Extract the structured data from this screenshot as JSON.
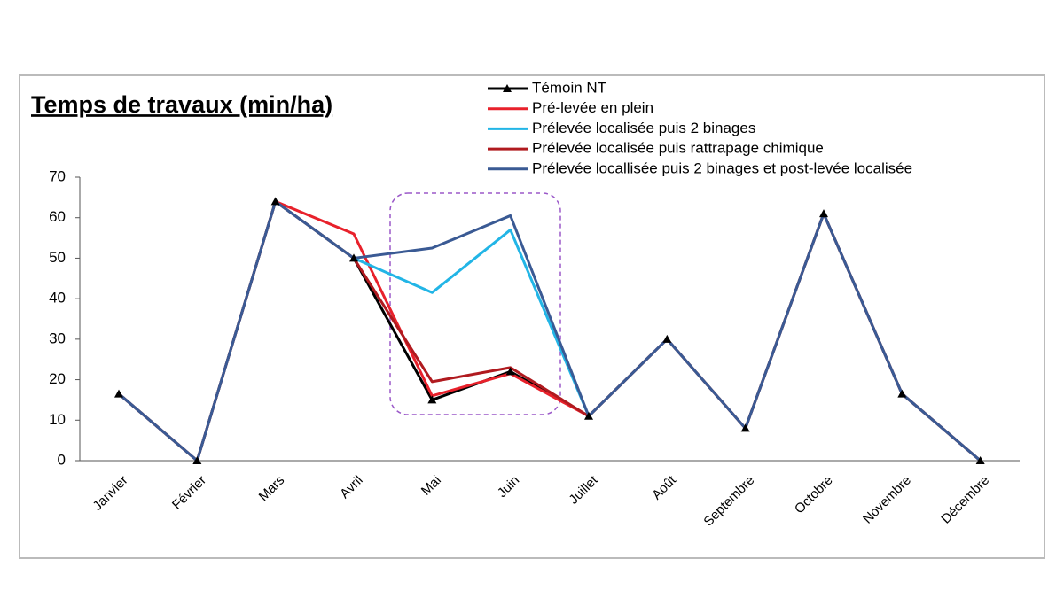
{
  "chart_data": {
    "type": "line",
    "title": "Temps de travaux (min/ha)",
    "categories": [
      "Janvier",
      "Février",
      "Mars",
      "Avril",
      "Mai",
      "Juin",
      "Juillet",
      "Août",
      "Septembre",
      "Octobre",
      "Novembre",
      "Décembre"
    ],
    "series": [
      {
        "name": "Témoin NT",
        "color": "#000000",
        "marker": "triangle",
        "values": [
          16.5,
          0,
          64,
          50,
          15,
          22,
          11,
          30,
          8,
          61,
          16.5,
          0
        ]
      },
      {
        "name": "Pré-levée en plein",
        "color": "#e8212b",
        "values": [
          16.5,
          0,
          64,
          56,
          16,
          21.5,
          11,
          30,
          8,
          61,
          16.5,
          0
        ]
      },
      {
        "name": "Prélevée localisée puis 2 binages",
        "color": "#22b5e6",
        "values": [
          16.5,
          0,
          64,
          50,
          41.5,
          57,
          11,
          30,
          8,
          61,
          16.5,
          0
        ]
      },
      {
        "name": "Prélevée localisée puis rattrapage chimique",
        "color": "#b01a1f",
        "values": [
          16.5,
          0,
          64,
          50,
          19.5,
          23,
          11,
          30,
          8,
          61,
          16.5,
          0
        ]
      },
      {
        "name": "Prélevée locallisée puis 2 binages et post-levée localisée",
        "color": "#3a5a94",
        "values": [
          16.5,
          0,
          64,
          50,
          52.5,
          60.5,
          11,
          30,
          8,
          61,
          16.5,
          0
        ]
      }
    ],
    "ylim": [
      0,
      70
    ],
    "yticks": [
      0,
      10,
      20,
      30,
      40,
      50,
      60,
      70
    ],
    "grid": false
  }
}
